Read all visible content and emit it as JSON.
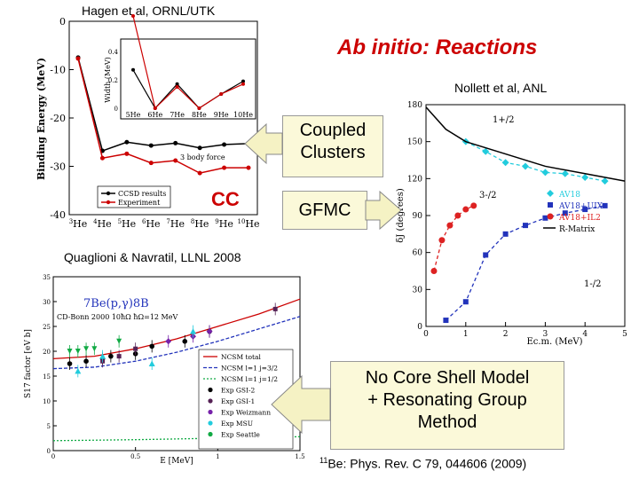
{
  "header": {
    "credit_top": "Hagen et al, ORNL/UTK",
    "title": "Ab initio: Reactions",
    "credit_right": "Nollett et al, ANL",
    "credit_mid": "Quaglioni & Navratil, LLNL 2008",
    "reference_sup": "11",
    "reference_rest": "Be:  Phys. Rev. C 79, 044606 (2009)"
  },
  "callouts": {
    "coupled_clusters": [
      "Coupled",
      "Clusters"
    ],
    "gfmc": "GFMC",
    "ncsm": [
      "No Core Shell Model",
      "+ Resonating Group",
      "Method"
    ],
    "cc_label": "CC"
  },
  "colors": {
    "accent_red": "#cc0000",
    "callout_fill": "#fbf9d9",
    "arrow_fill": "#f5f2c4"
  },
  "chart_data": [
    {
      "type": "line",
      "id": "cc-helium",
      "xlabel": "",
      "ylabel": "Binding Energy (MeV)",
      "categories": [
        "3He",
        "4He",
        "5He",
        "6He",
        "7He",
        "8He",
        "9He",
        "10He"
      ],
      "ylim": [
        -40,
        0
      ],
      "yticks": [
        "0",
        "-10",
        "-20",
        "-30",
        "-40"
      ],
      "series": [
        {
          "name": "CCSD results",
          "color": "#000000",
          "values": [
            -7.5,
            -26.8,
            -25.0,
            -25.7,
            -25.2,
            -26.2,
            -25.5,
            -25.3
          ]
        },
        {
          "name": "Experiment",
          "color": "#cc0000",
          "values": [
            -7.7,
            -28.3,
            -27.4,
            -29.3,
            -28.8,
            -31.4,
            -30.3,
            -30.3
          ]
        }
      ],
      "annotation": "3 body force",
      "legend": "bottom-left",
      "inset": {
        "ylabel": "Width (MeV)",
        "categories": [
          "5He",
          "6He",
          "7He",
          "8He",
          "9He",
          "10He"
        ],
        "yticks": [
          "0",
          "0.2",
          "0.4"
        ],
        "series": [
          {
            "name": "CCSD results",
            "color": "#000000",
            "values": [
              0.27,
              0.0,
              0.17,
              0.0,
              0.1,
              0.19
            ]
          },
          {
            "name": "Experiment",
            "color": "#cc0000",
            "values": [
              0.65,
              0.0,
              0.15,
              0.0,
              0.1,
              0.17
            ]
          }
        ]
      }
    },
    {
      "type": "line",
      "id": "gfmc-phase-shifts",
      "xlabel": "Ec.m. (MeV)",
      "ylabel": "δJ (degrees)",
      "xlim": [
        0,
        5
      ],
      "ylim": [
        0,
        180
      ],
      "xticks": [
        "0",
        "1",
        "2",
        "3",
        "4",
        "5"
      ],
      "yticks": [
        "0",
        "30",
        "60",
        "90",
        "120",
        "150",
        "180"
      ],
      "legend": "right",
      "legend_entries": [
        "AV18",
        "AV18+UIX",
        "AV18+IL2",
        "R-Matrix"
      ],
      "curve_labels": [
        "1+/2",
        "3-/2",
        "1-/2"
      ],
      "series": [
        {
          "name": "AV18",
          "color": "#22ccdd",
          "x": [
            1.0,
            1.5,
            2.0,
            2.5,
            3.0,
            3.5,
            4.0,
            4.5
          ],
          "values": [
            150,
            142,
            133,
            130,
            125,
            124,
            121,
            118
          ]
        },
        {
          "name": "AV18+UIX",
          "color": "#2233bb",
          "x": [
            0.5,
            1.0,
            1.5,
            2.0,
            2.5,
            3.0,
            3.5,
            4.0,
            4.5
          ],
          "values": [
            5,
            20,
            58,
            75,
            82,
            88,
            92,
            95,
            98
          ]
        },
        {
          "name": "AV18+IL2",
          "color": "#dd2222",
          "x": [
            0.2,
            0.4,
            0.6,
            0.8,
            1.0,
            1.2
          ],
          "values": [
            45,
            70,
            82,
            90,
            95,
            98
          ]
        },
        {
          "name": "R-Matrix",
          "color": "#000000",
          "x": [
            0,
            0.5,
            1,
            2,
            3,
            4,
            5
          ],
          "values": [
            178,
            160,
            150,
            140,
            130,
            124,
            118
          ]
        }
      ]
    },
    {
      "type": "line",
      "id": "be7-capture",
      "title": "7Be(p,γ)8B",
      "subtitle": "CD-Bonn 2000 10ħΩ ħΩ=12 MeV",
      "xlabel": "E [MeV]",
      "ylabel": "S17 factor [eV b]",
      "xlim": [
        0,
        1.5
      ],
      "ylim": [
        0,
        35
      ],
      "xticks": [
        "0",
        "0.5",
        "1",
        "1.5"
      ],
      "yticks": [
        "0",
        "5",
        "10",
        "15",
        "20",
        "25",
        "30",
        "35"
      ],
      "legend": "bottom-right",
      "series": [
        {
          "name": "NCSM total",
          "color": "#cc0000",
          "x": [
            0,
            0.25,
            0.5,
            0.75,
            1.0,
            1.25,
            1.5
          ],
          "values": [
            18.5,
            19.0,
            20.5,
            22.5,
            25.0,
            27.5,
            30.5
          ]
        },
        {
          "name": "NCSM l=1 j=3/2",
          "color": "#2233bb",
          "x": [
            0,
            0.25,
            0.5,
            0.75,
            1.0,
            1.25,
            1.5
          ],
          "values": [
            16.5,
            16.8,
            18.0,
            19.8,
            22.0,
            24.5,
            27.0
          ]
        },
        {
          "name": "NCSM l=1 j=1/2",
          "color": "#11aa44",
          "x": [
            0,
            0.5,
            1.0,
            1.5
          ],
          "values": [
            2.0,
            2.2,
            2.5,
            2.8
          ]
        },
        {
          "name": "Exp GSI-2",
          "color": "#000000",
          "x": [
            0.1,
            0.2,
            0.3,
            0.35,
            0.5,
            0.6,
            0.8,
            0.95
          ],
          "values": [
            17.5,
            18.0,
            18.5,
            19.0,
            19.5,
            21.0,
            22.0,
            24.0
          ]
        },
        {
          "name": "Exp GSI-1",
          "color": "#552255",
          "x": [
            0.3,
            0.4,
            0.5,
            1.35
          ],
          "values": [
            18.0,
            19.0,
            20.5,
            28.5
          ]
        },
        {
          "name": "Exp Weizmann",
          "color": "#7722aa",
          "x": [
            0.7,
            0.85,
            0.95
          ],
          "values": [
            22.0,
            23.0,
            24.0
          ]
        },
        {
          "name": "Exp MSU",
          "color": "#22ccdd",
          "x": [
            0.15,
            0.3,
            0.6,
            0.85
          ],
          "values": [
            16.0,
            19.0,
            17.5,
            24.0
          ]
        },
        {
          "name": "Exp Seattle",
          "color": "#11aa44",
          "x": [
            0.1,
            0.15,
            0.2,
            0.25,
            0.4
          ],
          "values": [
            20.0,
            20.0,
            20.5,
            20.5,
            22.0
          ]
        }
      ]
    }
  ]
}
